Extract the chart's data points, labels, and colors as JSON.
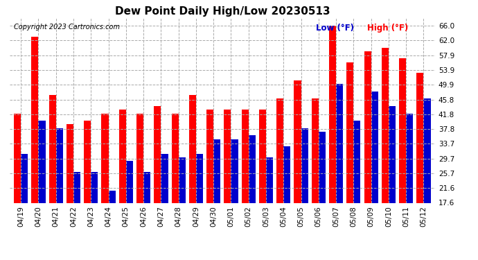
{
  "title": "Dew Point Daily High/Low 20230513",
  "copyright": "Copyright 2023 Cartronics.com",
  "legend_low": "Low (°F)",
  "legend_high": "High (°F)",
  "dates": [
    "04/19",
    "04/20",
    "04/21",
    "04/22",
    "04/23",
    "04/24",
    "04/25",
    "04/26",
    "04/27",
    "04/28",
    "04/29",
    "04/30",
    "05/01",
    "05/02",
    "05/03",
    "05/04",
    "05/05",
    "05/06",
    "05/07",
    "05/08",
    "05/09",
    "05/10",
    "05/11",
    "05/12"
  ],
  "high": [
    42,
    63,
    47,
    39,
    40,
    42,
    43,
    42,
    44,
    42,
    47,
    43,
    43,
    43,
    43,
    46,
    51,
    46,
    66,
    56,
    59,
    60,
    57,
    53
  ],
  "low": [
    31,
    40,
    38,
    26,
    26,
    21,
    29,
    26,
    31,
    30,
    31,
    35,
    35,
    36,
    30,
    33,
    38,
    37,
    50,
    40,
    48,
    44,
    42,
    46
  ],
  "ylim_min": 17.6,
  "ylim_max": 68.0,
  "yticks": [
    17.6,
    21.6,
    25.7,
    29.7,
    33.7,
    37.8,
    41.8,
    45.8,
    49.9,
    53.9,
    57.9,
    62.0,
    66.0
  ],
  "bar_color_high": "#ff0000",
  "bar_color_low": "#0000cc",
  "background_color": "#ffffff",
  "grid_color": "#aaaaaa",
  "title_fontsize": 11,
  "tick_fontsize": 7.5,
  "copyright_fontsize": 7
}
